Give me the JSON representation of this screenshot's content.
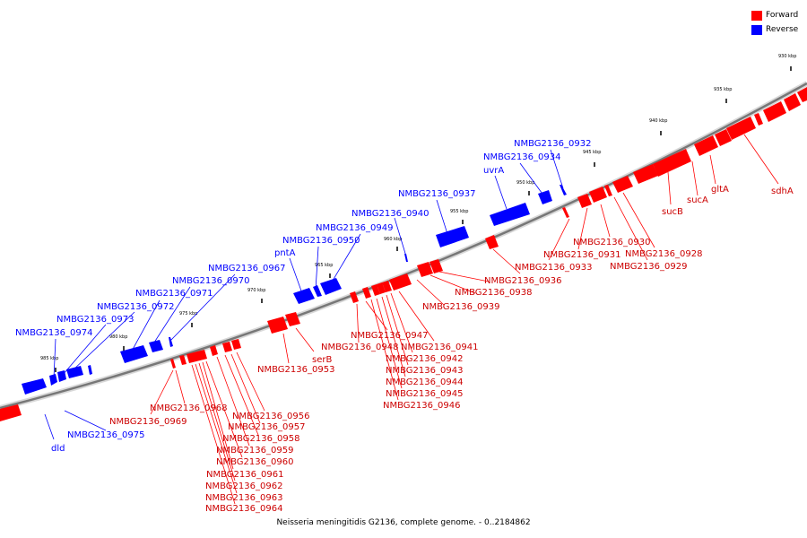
{
  "legend": [
    {
      "label": "Forward",
      "color": "#ff0000"
    },
    {
      "label": "Reverse",
      "color": "#0000ff"
    }
  ],
  "caption": "Neisseria meningitidis G2136, complete genome. - 0..2184862",
  "colors": {
    "forward": "#ff0000",
    "reverse": "#0000ff",
    "backbone": "#777777"
  },
  "scale_ticks": [
    "930 kbp",
    "935 kbp",
    "940 kbp",
    "945 kbp",
    "950 kbp",
    "955 kbp",
    "960 kbp",
    "965 kbp",
    "970 kbp",
    "975 kbp",
    "980 kbp",
    "985 kbp"
  ],
  "reverse_genes": [
    "NMBG2136_0932",
    "NMBG2136_0934",
    "uvrA",
    "NMBG2136_0937",
    "NMBG2136_0940",
    "NMBG2136_0949",
    "NMBG2136_0950",
    "pntA",
    "NMBG2136_0967",
    "NMBG2136_0970",
    "NMBG2136_0971",
    "NMBG2136_0972",
    "NMBG2136_0973",
    "NMBG2136_0974",
    "NMBG2136_0975",
    "dld"
  ],
  "forward_genes": [
    "sdhA",
    "gltA",
    "sucA",
    "sucB",
    "NMBG2136_0928",
    "NMBG2136_0929",
    "NMBG2136_0930",
    "NMBG2136_0931",
    "NMBG2136_0933",
    "NMBG2136_0936",
    "NMBG2136_0938",
    "NMBG2136_0939",
    "NMBG2136_0941",
    "NMBG2136_0942",
    "NMBG2136_0943",
    "NMBG2136_0944",
    "NMBG2136_0945",
    "NMBG2136_0946",
    "NMBG2136_0947",
    "NMBG2136_0948",
    "serB",
    "NMBG2136_0953",
    "NMBG2136_0956",
    "NMBG2136_0957",
    "NMBG2136_0958",
    "NMBG2136_0959",
    "NMBG2136_0960",
    "NMBG2136_0961",
    "NMBG2136_0962",
    "NMBG2136_0963",
    "NMBG2136_0964",
    "NMBG2136_0968",
    "NMBG2136_0969"
  ]
}
